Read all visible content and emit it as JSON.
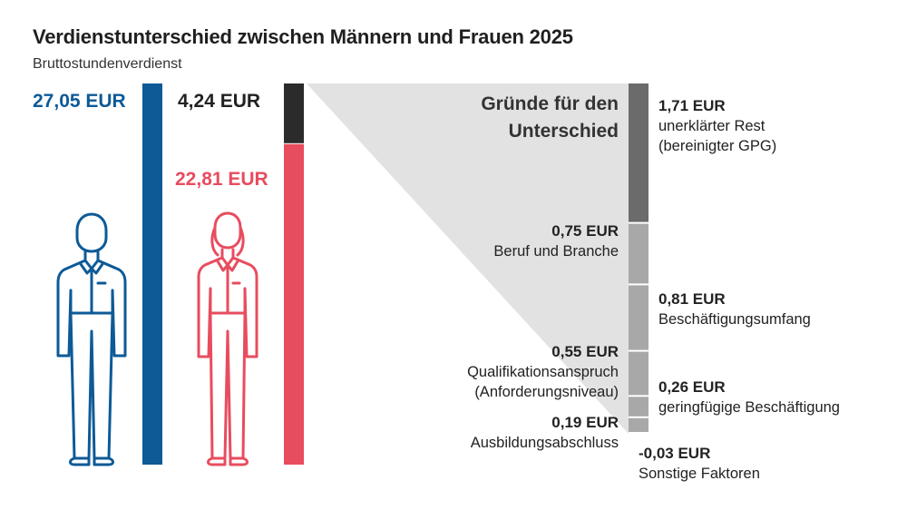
{
  "title": "Verdienstunterschied zwischen Männern und Frauen 2025",
  "subtitle": "Bruttostundenverdienst",
  "men_value": "27,05 EUR",
  "women_value": "22,81 EUR",
  "gap_value": "4,24 EUR",
  "reasons_title_line1": "Gründe für den",
  "reasons_title_line2": "Unterschied",
  "colors": {
    "men": "#0d5a97",
    "women": "#e84c5f",
    "gap": "#2b2b2b",
    "unexplained": "#6b6b6b",
    "explained": "#a8a8a8",
    "triangle": "#e2e2e2"
  },
  "icons": [
    "man-icon",
    "woman-icon"
  ],
  "chart_data": [
    {
      "type": "bar",
      "categories": [
        "Männer",
        "Frauen"
      ],
      "values": [
        27.05,
        22.81
      ],
      "gap": 4.24,
      "unit": "EUR"
    },
    {
      "type": "bar",
      "stacked": true,
      "unit": "EUR",
      "segments": [
        {
          "value": 1.71,
          "label": "1,71 EUR",
          "line1": "unerklärter Rest",
          "line2": "(bereinigter GPG)",
          "kind": "unexplained"
        },
        {
          "value": 0.75,
          "label": "0,75 EUR",
          "line1": "Beruf und Branche",
          "line2": "",
          "kind": "explained"
        },
        {
          "value": 0.81,
          "label": "0,81 EUR",
          "line1": "Beschäftigungsumfang",
          "line2": "",
          "kind": "explained"
        },
        {
          "value": 0.55,
          "label": "0,55 EUR",
          "line1": "Qualifikationsanspruch",
          "line2": "(Anforderungsniveau)",
          "kind": "explained"
        },
        {
          "value": 0.26,
          "label": "0,26 EUR",
          "line1": "geringfügige Beschäftigung",
          "line2": "",
          "kind": "explained"
        },
        {
          "value": 0.19,
          "label": "0,19 EUR",
          "line1": "Ausbildungsabschluss",
          "line2": "",
          "kind": "explained"
        },
        {
          "value": -0.03,
          "label": "-0,03 EUR",
          "line1": "Sonstige Faktoren",
          "line2": "",
          "kind": "explained"
        }
      ]
    }
  ]
}
